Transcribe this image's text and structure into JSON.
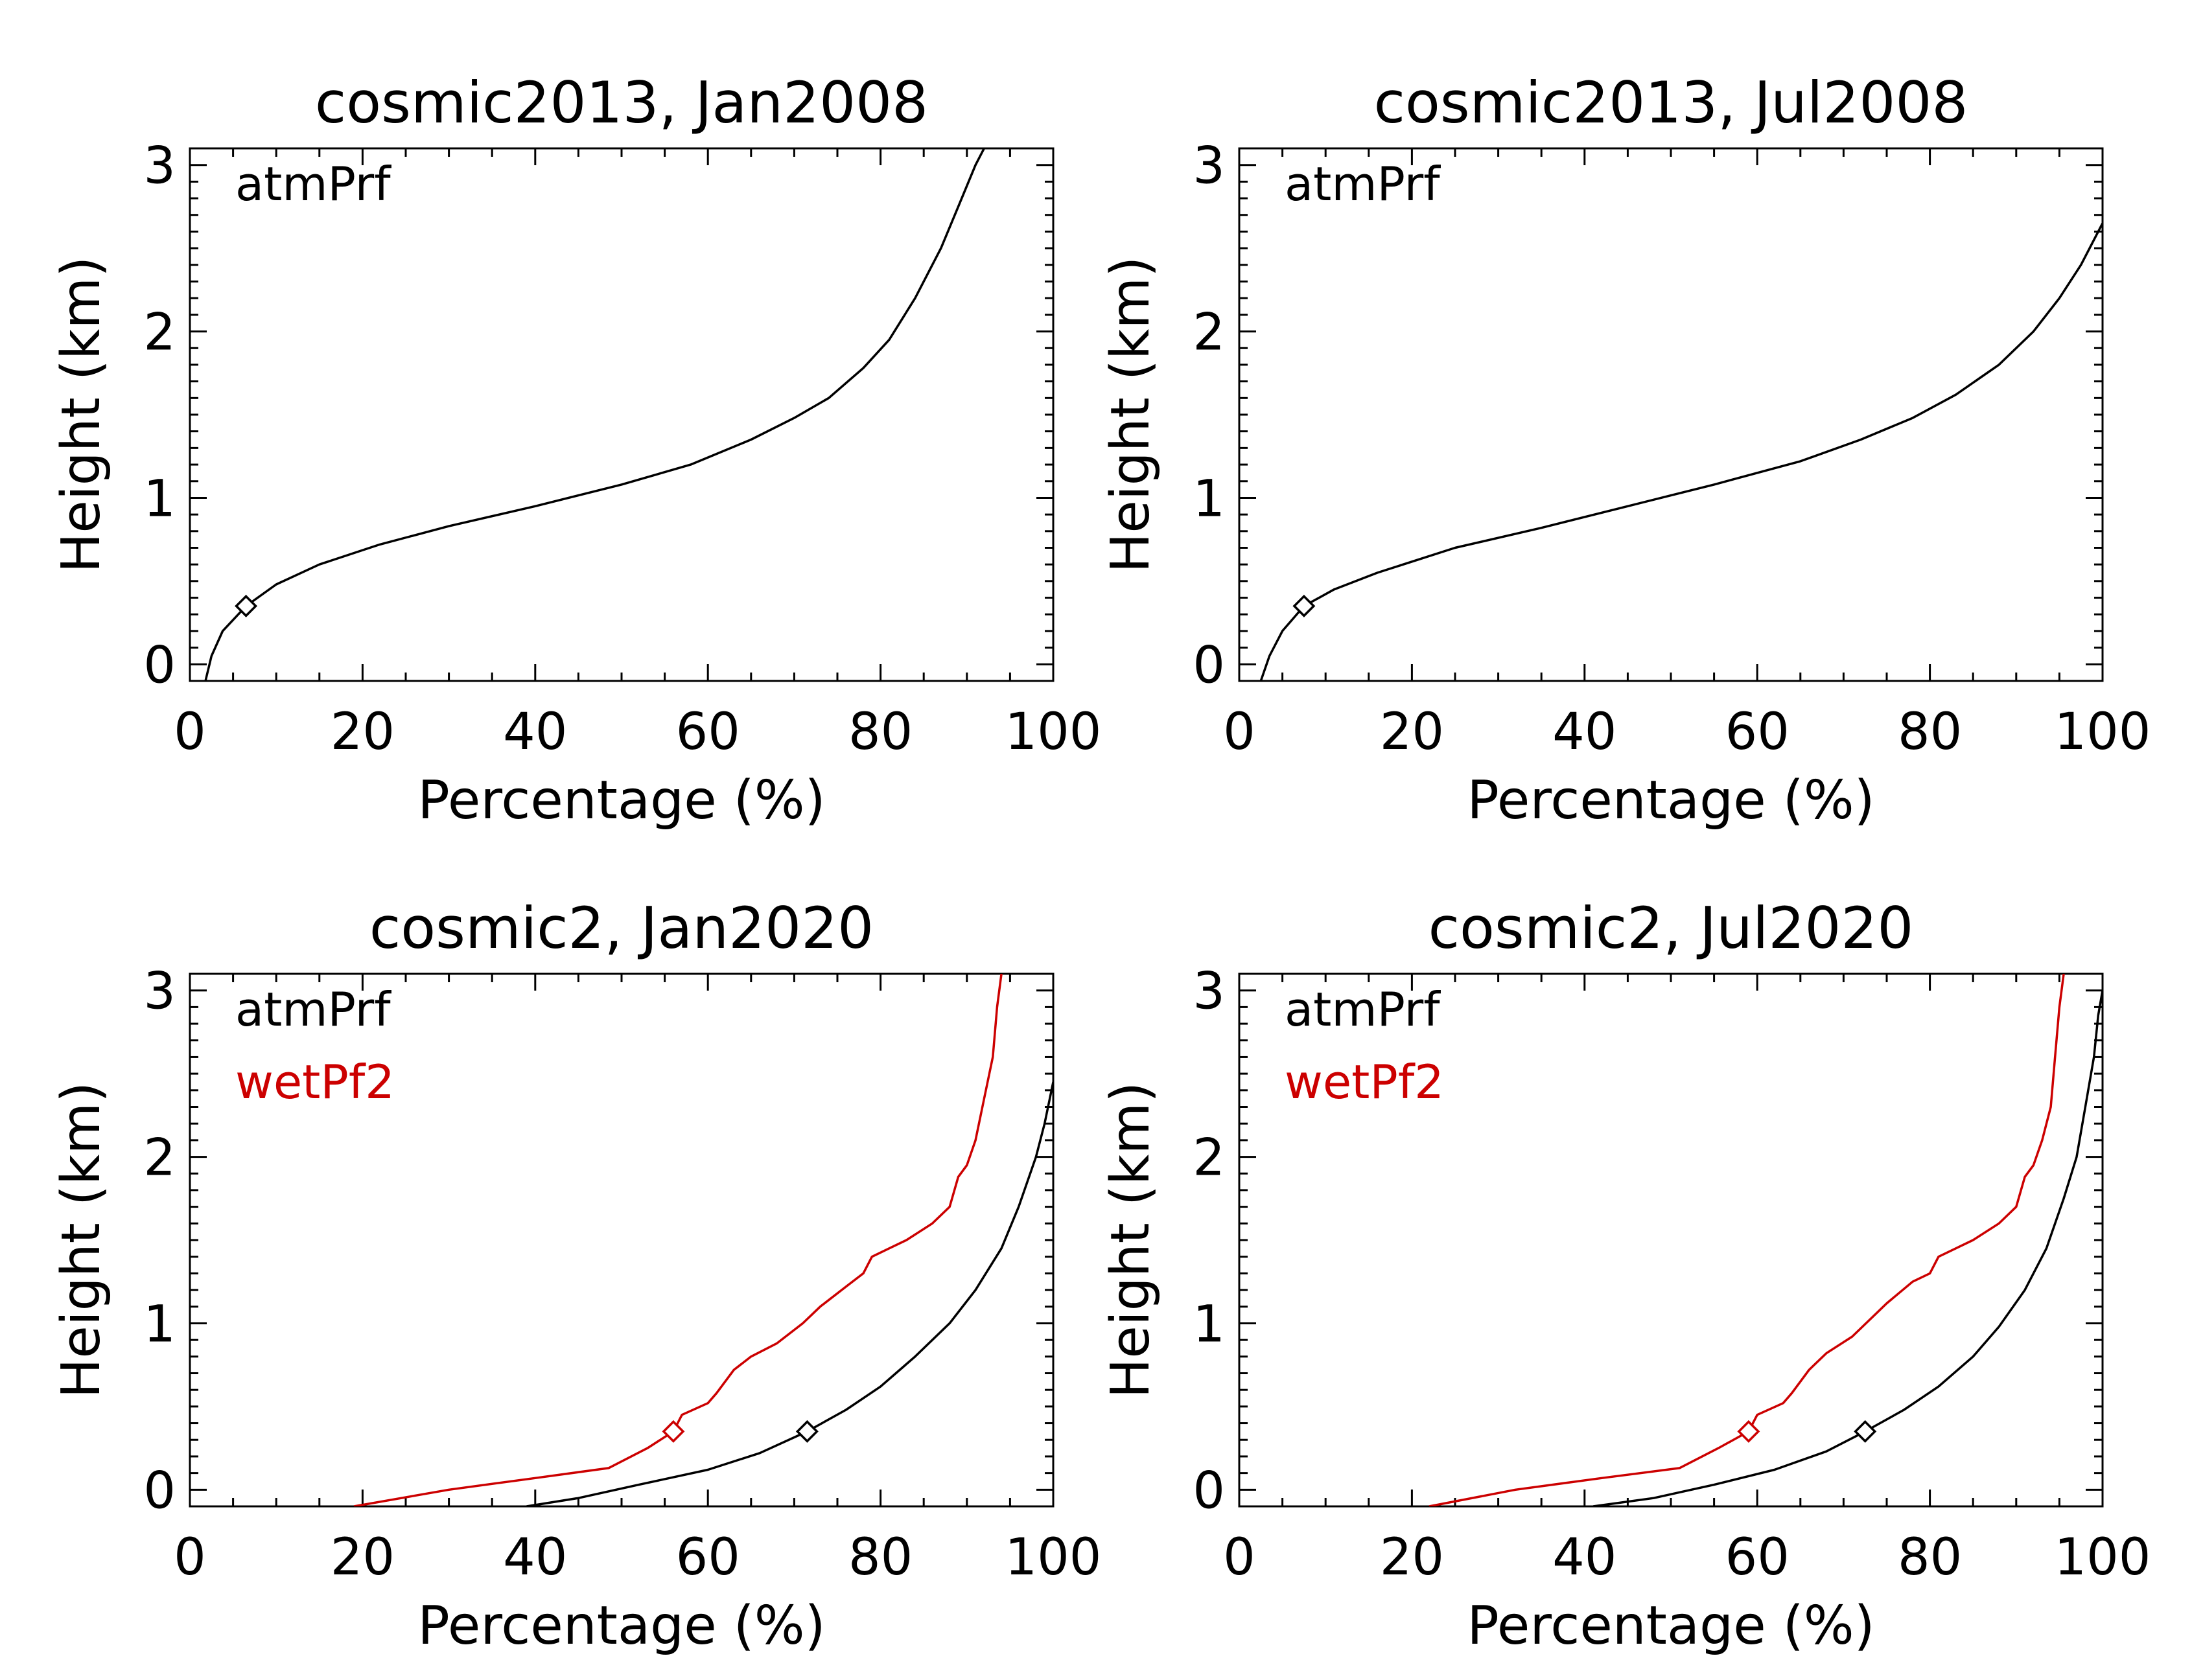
{
  "chart_data": [
    {
      "type": "line",
      "title": "cosmic2013, Jan2008",
      "xlabel": "Percentage (%)",
      "ylabel": "Height (km)",
      "xlim": [
        0,
        100
      ],
      "ylim": [
        -0.1,
        3.1
      ],
      "xticks": [
        "0",
        "20",
        "40",
        "60",
        "80",
        "100"
      ],
      "yticks": [
        "0",
        "1",
        "2",
        "3"
      ],
      "legend_placement": "top-left",
      "series": [
        {
          "name": "atmPrf",
          "color": "#000000",
          "marker": {
            "x": 6.5,
            "y": 0.35
          },
          "points": [
            [
              1.8,
              -0.1
            ],
            [
              2.5,
              0.05
            ],
            [
              3.8,
              0.2
            ],
            [
              6.5,
              0.35
            ],
            [
              10,
              0.48
            ],
            [
              15,
              0.6
            ],
            [
              22,
              0.72
            ],
            [
              30,
              0.83
            ],
            [
              40,
              0.95
            ],
            [
              50,
              1.08
            ],
            [
              58,
              1.2
            ],
            [
              65,
              1.35
            ],
            [
              70,
              1.48
            ],
            [
              74,
              1.6
            ],
            [
              78,
              1.78
            ],
            [
              81,
              1.95
            ],
            [
              84,
              2.2
            ],
            [
              87,
              2.5
            ],
            [
              89,
              2.75
            ],
            [
              91,
              3.0
            ],
            [
              92,
              3.1
            ]
          ]
        }
      ]
    },
    {
      "type": "line",
      "title": "cosmic2013, Jul2008",
      "xlabel": "Percentage (%)",
      "ylabel": "Height (km)",
      "xlim": [
        0,
        100
      ],
      "ylim": [
        -0.1,
        3.1
      ],
      "xticks": [
        "0",
        "20",
        "40",
        "60",
        "80",
        "100"
      ],
      "yticks": [
        "0",
        "1",
        "2",
        "3"
      ],
      "legend_placement": "top-left",
      "series": [
        {
          "name": "atmPrf",
          "color": "#000000",
          "marker": {
            "x": 7.5,
            "y": 0.35
          },
          "points": [
            [
              2.5,
              -0.1
            ],
            [
              3.5,
              0.05
            ],
            [
              5,
              0.2
            ],
            [
              7.5,
              0.35
            ],
            [
              11,
              0.45
            ],
            [
              16,
              0.55
            ],
            [
              25,
              0.7
            ],
            [
              35,
              0.82
            ],
            [
              45,
              0.95
            ],
            [
              55,
              1.08
            ],
            [
              65,
              1.22
            ],
            [
              72,
              1.35
            ],
            [
              78,
              1.48
            ],
            [
              83,
              1.62
            ],
            [
              88,
              1.8
            ],
            [
              92,
              2.0
            ],
            [
              95,
              2.2
            ],
            [
              97.5,
              2.4
            ],
            [
              100,
              2.65
            ]
          ]
        }
      ]
    },
    {
      "type": "line",
      "title": "cosmic2, Jan2020",
      "xlabel": "Percentage (%)",
      "ylabel": "Height (km)",
      "xlim": [
        0,
        100
      ],
      "ylim": [
        -0.1,
        3.1
      ],
      "xticks": [
        "0",
        "20",
        "40",
        "60",
        "80",
        "100"
      ],
      "yticks": [
        "0",
        "1",
        "2",
        "3"
      ],
      "legend_placement": "top-left",
      "series": [
        {
          "name": "atmPrf",
          "color": "#000000",
          "marker": {
            "x": 71.5,
            "y": 0.35
          },
          "points": [
            [
              39,
              -0.1
            ],
            [
              45,
              -0.05
            ],
            [
              52,
              0.03
            ],
            [
              60,
              0.12
            ],
            [
              66,
              0.22
            ],
            [
              71.5,
              0.35
            ],
            [
              76,
              0.48
            ],
            [
              80,
              0.62
            ],
            [
              84,
              0.8
            ],
            [
              88,
              1.0
            ],
            [
              91,
              1.2
            ],
            [
              94,
              1.45
            ],
            [
              96,
              1.7
            ],
            [
              98,
              2.0
            ],
            [
              99,
              2.2
            ],
            [
              100,
              2.45
            ]
          ]
        },
        {
          "name": "wetPf2",
          "color": "#cc0000",
          "marker": {
            "x": 56,
            "y": 0.35
          },
          "points": [
            [
              19,
              -0.1
            ],
            [
              30,
              0.0
            ],
            [
              40,
              0.07
            ],
            [
              48.5,
              0.13
            ],
            [
              53,
              0.25
            ],
            [
              56,
              0.35
            ],
            [
              57,
              0.45
            ],
            [
              60,
              0.52
            ],
            [
              61,
              0.58
            ],
            [
              63,
              0.72
            ],
            [
              65,
              0.8
            ],
            [
              68,
              0.88
            ],
            [
              71,
              1.0
            ],
            [
              73,
              1.1
            ],
            [
              76,
              1.22
            ],
            [
              78,
              1.3
            ],
            [
              79,
              1.4
            ],
            [
              81,
              1.45
            ],
            [
              83,
              1.5
            ],
            [
              86,
              1.6
            ],
            [
              88,
              1.7
            ],
            [
              89,
              1.88
            ],
            [
              90,
              1.95
            ],
            [
              91,
              2.1
            ],
            [
              92,
              2.35
            ],
            [
              93,
              2.6
            ],
            [
              93.5,
              2.9
            ],
            [
              94,
              3.1
            ]
          ]
        }
      ]
    },
    {
      "type": "line",
      "title": "cosmic2, Jul2020",
      "xlabel": "Percentage (%)",
      "ylabel": "Height (km)",
      "xlim": [
        0,
        100
      ],
      "ylim": [
        -0.1,
        3.1
      ],
      "xticks": [
        "0",
        "20",
        "40",
        "60",
        "80",
        "100"
      ],
      "yticks": [
        "0",
        "1",
        "2",
        "3"
      ],
      "legend_placement": "top-left",
      "series": [
        {
          "name": "atmPrf",
          "color": "#000000",
          "marker": {
            "x": 72.5,
            "y": 0.35
          },
          "points": [
            [
              41,
              -0.1
            ],
            [
              48,
              -0.05
            ],
            [
              55,
              0.03
            ],
            [
              62,
              0.12
            ],
            [
              68,
              0.23
            ],
            [
              72.5,
              0.35
            ],
            [
              77,
              0.48
            ],
            [
              81,
              0.62
            ],
            [
              85,
              0.8
            ],
            [
              88,
              0.98
            ],
            [
              91,
              1.2
            ],
            [
              93.5,
              1.45
            ],
            [
              95.5,
              1.75
            ],
            [
              97,
              2.0
            ],
            [
              98,
              2.3
            ],
            [
              99,
              2.6
            ],
            [
              99.5,
              2.85
            ],
            [
              100,
              3.0
            ]
          ]
        },
        {
          "name": "wetPf2",
          "color": "#cc0000",
          "marker": {
            "x": 59,
            "y": 0.35
          },
          "points": [
            [
              22,
              -0.1
            ],
            [
              32,
              0.0
            ],
            [
              42,
              0.07
            ],
            [
              51,
              0.13
            ],
            [
              55.5,
              0.25
            ],
            [
              59,
              0.35
            ],
            [
              60,
              0.45
            ],
            [
              63,
              0.52
            ],
            [
              64,
              0.58
            ],
            [
              66,
              0.72
            ],
            [
              68,
              0.82
            ],
            [
              71,
              0.92
            ],
            [
              73,
              1.02
            ],
            [
              75,
              1.12
            ],
            [
              78,
              1.25
            ],
            [
              80,
              1.3
            ],
            [
              81,
              1.4
            ],
            [
              83,
              1.45
            ],
            [
              85,
              1.5
            ],
            [
              88,
              1.6
            ],
            [
              90,
              1.7
            ],
            [
              91,
              1.88
            ],
            [
              92,
              1.95
            ],
            [
              93,
              2.1
            ],
            [
              94,
              2.3
            ],
            [
              94.5,
              2.6
            ],
            [
              95,
              2.9
            ],
            [
              95.5,
              3.1
            ]
          ]
        }
      ]
    }
  ]
}
